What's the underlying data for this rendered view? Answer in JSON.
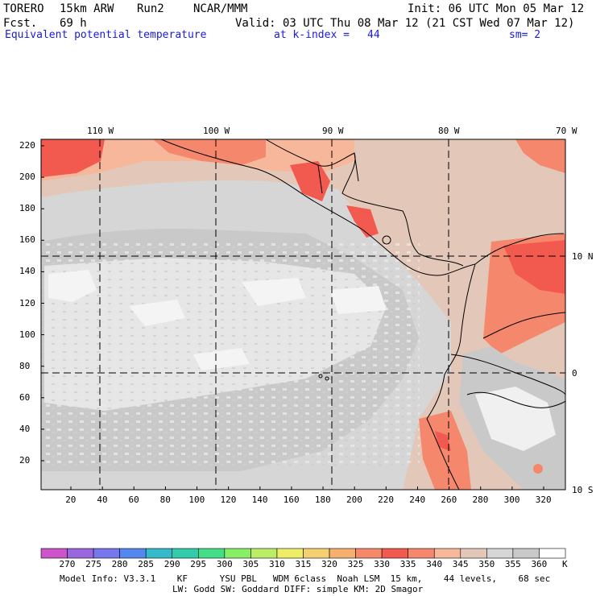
{
  "header": {
    "model": "TORERO",
    "resolution": "15km ARW",
    "run": "Run2",
    "org": "NCAR/MMM",
    "init": "Init: 06 UTC Mon 05 Mar 12",
    "fcst_label": "Fcst.",
    "fcst_hours": "69 h",
    "valid": "Valid: 03 UTC Thu 08 Mar 12 (21 CST Wed 07 Mar 12)",
    "field": "Equivalent potential temperature",
    "level": "at k-index =",
    "k_index": "44",
    "smoothing": "sm= 2"
  },
  "map": {
    "top_lon_labels": [
      "110 W",
      "100 W",
      "90 W",
      "80 W",
      "70 W"
    ],
    "right_lat_labels": [
      "10 N",
      "0",
      "10 S"
    ],
    "y_ticks": [
      "220",
      "200",
      "180",
      "160",
      "140",
      "120",
      "100",
      "80",
      "60",
      "40",
      "20"
    ],
    "x_ticks": [
      "20",
      "40",
      "60",
      "80",
      "100",
      "120",
      "140",
      "160",
      "180",
      "200",
      "220",
      "240",
      "260",
      "280",
      "300",
      "320"
    ],
    "colors": {
      "warm_strong": "#f25a4f",
      "warm_mid": "#f5876c",
      "warm_light": "#f7b79b",
      "tan": "#e3c8b9",
      "gray_dark": "#c9c9c9",
      "gray_mid": "#d6d6d6",
      "gray_light": "#e6e6e6",
      "white": "#f7f7f7"
    }
  },
  "colorbar": {
    "labels": [
      "270",
      "275",
      "280",
      "285",
      "290",
      "295",
      "300",
      "305",
      "310",
      "315",
      "320",
      "325",
      "330",
      "335",
      "340",
      "345",
      "350",
      "355",
      "360"
    ],
    "unit": "K",
    "colors": [
      "#cc55cc",
      "#9966dd",
      "#7777ee",
      "#5588ee",
      "#33bbcc",
      "#33ccaa",
      "#44dd88",
      "#88ee66",
      "#bbee66",
      "#eeee66",
      "#f5d070",
      "#f5b070",
      "#f58a6a",
      "#f25a4f",
      "#f5876c",
      "#f7b79b",
      "#e3c8b9",
      "#d6d6d6",
      "#c9c9c9",
      "#ffffff"
    ]
  },
  "footer": {
    "line1": "Model Info: V3.3.1    KF      YSU PBL   WDM 6class  Noah LSM  15 km,    44 levels,    68 sec",
    "line2": "LW: Godd SW: Goddard DIFF: simple KM: 2D Smagor"
  }
}
